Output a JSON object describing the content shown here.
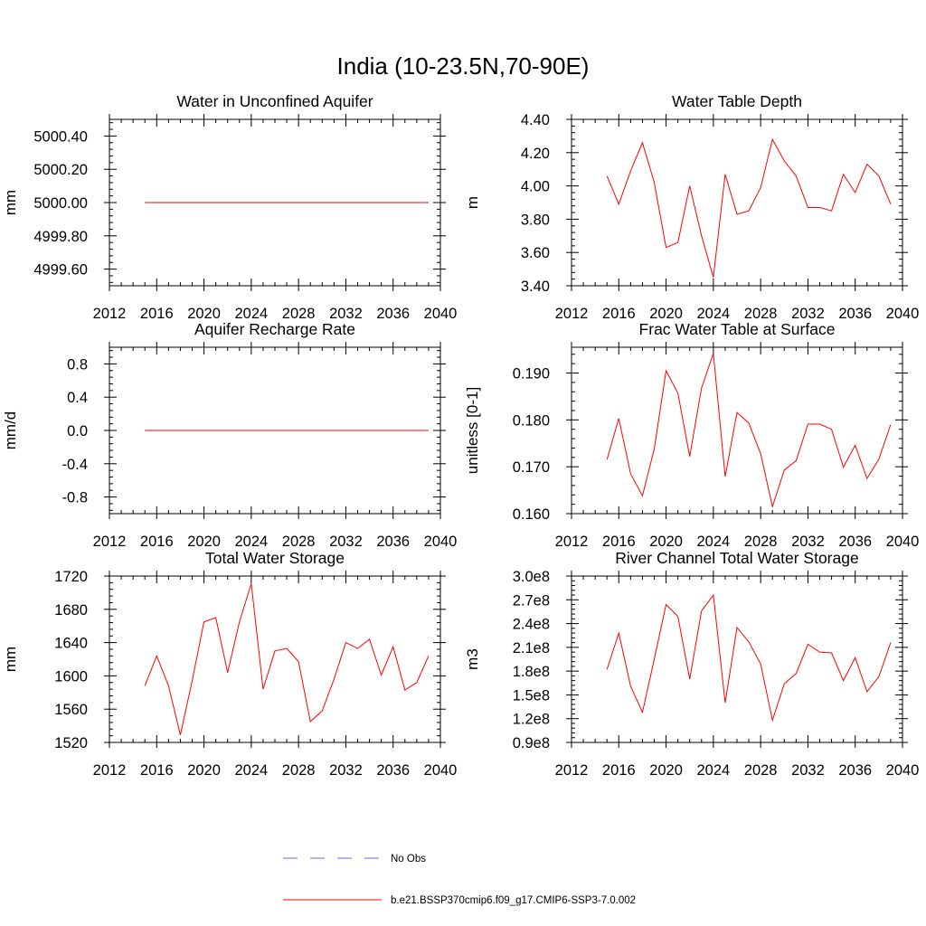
{
  "figure": {
    "title": "India (10-23.5N,70-90E)"
  },
  "colors": {
    "model": "#ff0000",
    "obs": "#6a6acd",
    "axis": "#000000",
    "background": "#ffffff"
  },
  "legend": {
    "placement": "bottom",
    "entries": [
      {
        "label": "No Obs",
        "style": "dashed",
        "color": "#6a6acd"
      },
      {
        "label": "b.e21.BSSP370cmip6.f09_g17.CMIP6-SSP3-7.0.002",
        "style": "solid",
        "color": "#ff0000"
      }
    ]
  },
  "chart_data": [
    {
      "type": "line",
      "title": "Water in Unconfined Aquifer",
      "ylabel": "mm",
      "xlim": [
        2012,
        2040
      ],
      "ylim": [
        4999.5,
        5000.5
      ],
      "xticks": [
        2012,
        2016,
        2020,
        2024,
        2028,
        2032,
        2036,
        2040
      ],
      "yticks": [
        4999.6,
        4999.8,
        5000.0,
        5000.2,
        5000.4
      ],
      "ytick_labels": [
        "4999.60",
        "4999.80",
        "5000.00",
        "5000.20",
        "5000.40"
      ],
      "x": [
        2015,
        2039
      ],
      "series": [
        {
          "name": "b.e21.BSSP370cmip6.f09_g17.CMIP6-SSP3-7.0.002",
          "values": [
            5000.0,
            5000.0
          ]
        }
      ]
    },
    {
      "type": "line",
      "title": "Water Table Depth",
      "ylabel": "m",
      "xlim": [
        2012,
        2040
      ],
      "ylim": [
        3.4,
        4.4
      ],
      "xticks": [
        2012,
        2016,
        2020,
        2024,
        2028,
        2032,
        2036,
        2040
      ],
      "yticks": [
        3.4,
        3.6,
        3.8,
        4.0,
        4.2,
        4.4
      ],
      "ytick_labels": [
        "3.40",
        "3.60",
        "3.80",
        "4.00",
        "4.20",
        "4.40"
      ],
      "x": [
        2015,
        2016,
        2017,
        2018,
        2019,
        2020,
        2021,
        2022,
        2023,
        2024,
        2025,
        2026,
        2027,
        2028,
        2029,
        2030,
        2031,
        2032,
        2033,
        2034,
        2035,
        2036,
        2037,
        2038,
        2039
      ],
      "series": [
        {
          "name": "b.e21.BSSP370cmip6.f09_g17.CMIP6-SSP3-7.0.002",
          "values": [
            4.06,
            3.89,
            4.09,
            4.26,
            4.02,
            3.63,
            3.66,
            4.0,
            3.7,
            3.45,
            4.07,
            3.83,
            3.85,
            3.99,
            4.28,
            4.15,
            4.06,
            3.87,
            3.87,
            3.85,
            4.07,
            3.96,
            4.13,
            4.06,
            3.89
          ]
        }
      ]
    },
    {
      "type": "line",
      "title": "Aquifer Recharge Rate",
      "ylabel": "mm/d",
      "xlim": [
        2012,
        2040
      ],
      "ylim": [
        -1.0,
        1.0
      ],
      "xticks": [
        2012,
        2016,
        2020,
        2024,
        2028,
        2032,
        2036,
        2040
      ],
      "yticks": [
        -0.8,
        -0.4,
        0.0,
        0.4,
        0.8
      ],
      "ytick_labels": [
        "-0.8",
        "-0.4",
        "0.0",
        "0.4",
        "0.8"
      ],
      "x": [
        2015,
        2039
      ],
      "series": [
        {
          "name": "b.e21.BSSP370cmip6.f09_g17.CMIP6-SSP3-7.0.002",
          "values": [
            0.0,
            0.0
          ]
        }
      ]
    },
    {
      "type": "line",
      "title": "Frac Water Table at Surface",
      "ylabel": "unitless [0-1]",
      "xlim": [
        2012,
        2040
      ],
      "ylim": [
        0.16,
        0.1955
      ],
      "xticks": [
        2012,
        2016,
        2020,
        2024,
        2028,
        2032,
        2036,
        2040
      ],
      "yticks": [
        0.16,
        0.17,
        0.18,
        0.19
      ],
      "ytick_labels": [
        "0.160",
        "0.170",
        "0.180",
        "0.190"
      ],
      "x": [
        2015,
        2016,
        2017,
        2018,
        2019,
        2020,
        2021,
        2022,
        2023,
        2024,
        2025,
        2026,
        2027,
        2028,
        2029,
        2030,
        2031,
        2032,
        2033,
        2034,
        2035,
        2036,
        2037,
        2038,
        2039
      ],
      "series": [
        {
          "name": "b.e21.BSSP370cmip6.f09_g17.CMIP6-SSP3-7.0.002",
          "values": [
            0.1715,
            0.1803,
            0.1685,
            0.1638,
            0.1738,
            0.1905,
            0.1857,
            0.1722,
            0.1868,
            0.1942,
            0.1679,
            0.1816,
            0.1793,
            0.1728,
            0.1615,
            0.1693,
            0.1713,
            0.1791,
            0.1791,
            0.178,
            0.1699,
            0.1746,
            0.1675,
            0.1716,
            0.179
          ]
        }
      ]
    },
    {
      "type": "line",
      "title": "Total Water Storage",
      "ylabel": "mm",
      "xlim": [
        2012,
        2040
      ],
      "ylim": [
        1520,
        1720
      ],
      "xticks": [
        2012,
        2016,
        2020,
        2024,
        2028,
        2032,
        2036,
        2040
      ],
      "yticks": [
        1520,
        1560,
        1600,
        1640,
        1680,
        1720
      ],
      "ytick_labels": [
        "1520",
        "1560",
        "1600",
        "1640",
        "1680",
        "1720"
      ],
      "x": [
        2015,
        2016,
        2017,
        2018,
        2019,
        2020,
        2021,
        2022,
        2023,
        2024,
        2025,
        2026,
        2027,
        2028,
        2029,
        2030,
        2031,
        2032,
        2033,
        2034,
        2035,
        2036,
        2037,
        2038,
        2039
      ],
      "series": [
        {
          "name": "b.e21.BSSP370cmip6.f09_g17.CMIP6-SSP3-7.0.002",
          "values": [
            1588,
            1624,
            1588,
            1529,
            1594,
            1665,
            1670,
            1604,
            1665,
            1711,
            1584,
            1630,
            1633,
            1617,
            1545,
            1558,
            1596,
            1640,
            1633,
            1644,
            1601,
            1635,
            1583,
            1592,
            1624
          ]
        }
      ]
    },
    {
      "type": "line",
      "title": "River Channel Total Water Storage",
      "ylabel": "m3",
      "xlim": [
        2012,
        2040
      ],
      "ylim": [
        90000000,
        300000000
      ],
      "xticks": [
        2012,
        2016,
        2020,
        2024,
        2028,
        2032,
        2036,
        2040
      ],
      "yticks": [
        90000000,
        120000000,
        150000000,
        180000000,
        210000000,
        240000000,
        270000000,
        300000000
      ],
      "ytick_labels": [
        "0.9e8",
        "1.2e8",
        "1.5e8",
        "1.8e8",
        "2.1e8",
        "2.4e8",
        "2.7e8",
        "3.0e8"
      ],
      "x": [
        2015,
        2016,
        2017,
        2018,
        2019,
        2020,
        2021,
        2022,
        2023,
        2024,
        2025,
        2026,
        2027,
        2028,
        2029,
        2030,
        2031,
        2032,
        2033,
        2034,
        2035,
        2036,
        2037,
        2038,
        2039
      ],
      "series": [
        {
          "name": "b.e21.BSSP370cmip6.f09_g17.CMIP6-SSP3-7.0.002",
          "values": [
            182000000,
            228000000,
            161000000,
            128000000,
            195000000,
            264000000,
            249000000,
            170000000,
            256000000,
            276000000,
            140000000,
            235000000,
            217000000,
            189000000,
            118000000,
            164000000,
            177000000,
            214000000,
            204000000,
            203000000,
            168000000,
            197000000,
            154000000,
            173000000,
            216000000
          ]
        }
      ]
    }
  ]
}
